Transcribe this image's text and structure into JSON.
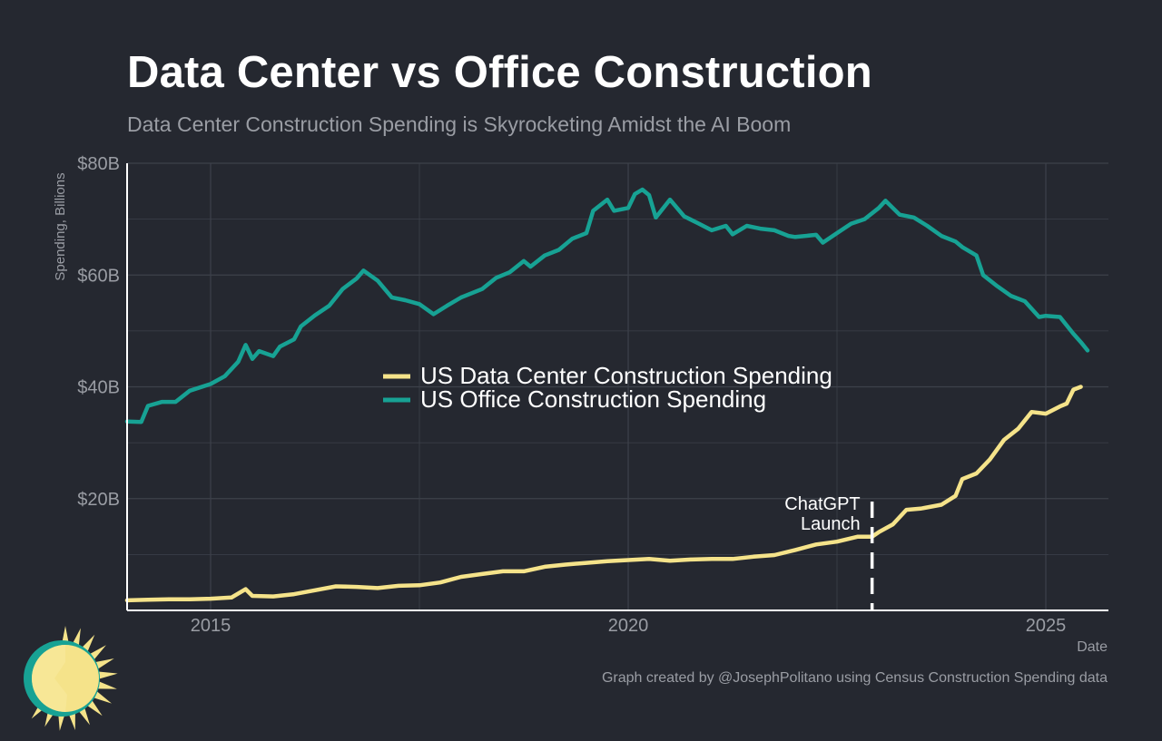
{
  "header": {
    "title": "Data Center vs Office Construction",
    "subtitle": "Data Center Construction Spending is Skyrocketing Amidst the AI Boom"
  },
  "footer": {
    "caption": "Graph created by @JosephPolitano using Census Construction Spending data"
  },
  "colors": {
    "background": "#252830",
    "data_center": "#f5e38a",
    "office": "#17a294",
    "grid": "#3d414a",
    "axis_text": "#9a9da4"
  },
  "chart_data": {
    "type": "line",
    "title": "Data Center vs Office Construction",
    "subtitle": "Data Center Construction Spending is Skyrocketing Amidst the AI Boom",
    "xlabel": "Date",
    "ylabel": "Spending, Billions",
    "xlim": [
      2014.0,
      2025.75
    ],
    "ylim": [
      0,
      80
    ],
    "x_ticks": [
      2015,
      2020,
      2025
    ],
    "x_tick_labels": [
      "2015",
      "2020",
      "2025"
    ],
    "y_ticks": [
      20,
      40,
      60,
      80
    ],
    "y_tick_labels": [
      "$20B",
      "$40B",
      "$60B",
      "$80B"
    ],
    "grid": true,
    "legend_position": "center",
    "annotation": {
      "x": 2022.92,
      "text_line1": "ChatGPT",
      "text_line2": "Launch"
    },
    "series": [
      {
        "name": "US Data Center Construction Spending",
        "color": "#f5e38a",
        "points": [
          [
            2014.0,
            1.8
          ],
          [
            2014.25,
            1.9
          ],
          [
            2014.5,
            2.0
          ],
          [
            2014.75,
            2.0
          ],
          [
            2015.0,
            2.1
          ],
          [
            2015.25,
            2.3
          ],
          [
            2015.42,
            3.8
          ],
          [
            2015.5,
            2.6
          ],
          [
            2015.75,
            2.5
          ],
          [
            2016.0,
            2.9
          ],
          [
            2016.25,
            3.6
          ],
          [
            2016.5,
            4.3
          ],
          [
            2016.75,
            4.2
          ],
          [
            2017.0,
            4.0
          ],
          [
            2017.25,
            4.4
          ],
          [
            2017.5,
            4.5
          ],
          [
            2017.75,
            5.0
          ],
          [
            2018.0,
            6.0
          ],
          [
            2018.25,
            6.5
          ],
          [
            2018.5,
            7.0
          ],
          [
            2018.75,
            7.0
          ],
          [
            2019.0,
            7.8
          ],
          [
            2019.25,
            8.2
          ],
          [
            2019.5,
            8.5
          ],
          [
            2019.75,
            8.8
          ],
          [
            2020.0,
            9.0
          ],
          [
            2020.25,
            9.2
          ],
          [
            2020.5,
            8.9
          ],
          [
            2020.75,
            9.1
          ],
          [
            2021.0,
            9.2
          ],
          [
            2021.25,
            9.2
          ],
          [
            2021.5,
            9.6
          ],
          [
            2021.75,
            9.9
          ],
          [
            2022.0,
            10.8
          ],
          [
            2022.25,
            11.8
          ],
          [
            2022.5,
            12.3
          ],
          [
            2022.75,
            13.2
          ],
          [
            2022.92,
            13.2
          ],
          [
            2023.0,
            14.0
          ],
          [
            2023.17,
            15.4
          ],
          [
            2023.33,
            18.0
          ],
          [
            2023.5,
            18.2
          ],
          [
            2023.75,
            18.9
          ],
          [
            2023.92,
            20.5
          ],
          [
            2024.0,
            23.5
          ],
          [
            2024.17,
            24.5
          ],
          [
            2024.33,
            27.0
          ],
          [
            2024.5,
            30.5
          ],
          [
            2024.67,
            32.5
          ],
          [
            2024.83,
            35.5
          ],
          [
            2025.0,
            35.2
          ],
          [
            2025.17,
            36.5
          ],
          [
            2025.25,
            37.0
          ],
          [
            2025.33,
            39.5
          ],
          [
            2025.42,
            40.0
          ]
        ]
      },
      {
        "name": "US Office Construction Spending",
        "color": "#17a294",
        "points": [
          [
            2014.0,
            33.8
          ],
          [
            2014.17,
            33.7
          ],
          [
            2014.25,
            36.6
          ],
          [
            2014.42,
            37.3
          ],
          [
            2014.58,
            37.3
          ],
          [
            2014.75,
            39.3
          ],
          [
            2015.0,
            40.5
          ],
          [
            2015.17,
            41.9
          ],
          [
            2015.33,
            44.5
          ],
          [
            2015.42,
            47.5
          ],
          [
            2015.5,
            45.0
          ],
          [
            2015.58,
            46.4
          ],
          [
            2015.75,
            45.5
          ],
          [
            2015.83,
            47.2
          ],
          [
            2016.0,
            48.5
          ],
          [
            2016.08,
            50.8
          ],
          [
            2016.25,
            52.8
          ],
          [
            2016.42,
            54.5
          ],
          [
            2016.58,
            57.5
          ],
          [
            2016.75,
            59.4
          ],
          [
            2016.83,
            60.8
          ],
          [
            2017.0,
            59.0
          ],
          [
            2017.17,
            56.0
          ],
          [
            2017.33,
            55.5
          ],
          [
            2017.5,
            54.8
          ],
          [
            2017.67,
            53.0
          ],
          [
            2017.83,
            54.5
          ],
          [
            2018.0,
            56.0
          ],
          [
            2018.25,
            57.5
          ],
          [
            2018.42,
            59.5
          ],
          [
            2018.58,
            60.5
          ],
          [
            2018.75,
            62.5
          ],
          [
            2018.83,
            61.5
          ],
          [
            2019.0,
            63.5
          ],
          [
            2019.17,
            64.5
          ],
          [
            2019.33,
            66.5
          ],
          [
            2019.5,
            67.5
          ],
          [
            2019.58,
            71.5
          ],
          [
            2019.75,
            73.5
          ],
          [
            2019.83,
            71.5
          ],
          [
            2020.0,
            72.0
          ],
          [
            2020.08,
            74.5
          ],
          [
            2020.17,
            75.3
          ],
          [
            2020.25,
            74.3
          ],
          [
            2020.33,
            70.3
          ],
          [
            2020.5,
            73.5
          ],
          [
            2020.67,
            70.5
          ],
          [
            2020.83,
            69.3
          ],
          [
            2021.0,
            68.0
          ],
          [
            2021.17,
            68.8
          ],
          [
            2021.25,
            67.3
          ],
          [
            2021.42,
            68.8
          ],
          [
            2021.58,
            68.3
          ],
          [
            2021.75,
            68.0
          ],
          [
            2021.92,
            67.0
          ],
          [
            2022.0,
            66.8
          ],
          [
            2022.25,
            67.2
          ],
          [
            2022.33,
            65.8
          ],
          [
            2022.5,
            67.5
          ],
          [
            2022.67,
            69.2
          ],
          [
            2022.83,
            70.0
          ],
          [
            2023.0,
            72.0
          ],
          [
            2023.08,
            73.3
          ],
          [
            2023.25,
            70.8
          ],
          [
            2023.42,
            70.3
          ],
          [
            2023.58,
            68.8
          ],
          [
            2023.75,
            67.0
          ],
          [
            2023.92,
            66.0
          ],
          [
            2024.0,
            65.0
          ],
          [
            2024.17,
            63.5
          ],
          [
            2024.25,
            60.0
          ],
          [
            2024.42,
            58.0
          ],
          [
            2024.58,
            56.3
          ],
          [
            2024.75,
            55.3
          ],
          [
            2024.92,
            52.5
          ],
          [
            2025.0,
            52.7
          ],
          [
            2025.17,
            52.5
          ],
          [
            2025.33,
            49.5
          ],
          [
            2025.42,
            48.0
          ],
          [
            2025.5,
            46.5
          ]
        ]
      }
    ]
  }
}
